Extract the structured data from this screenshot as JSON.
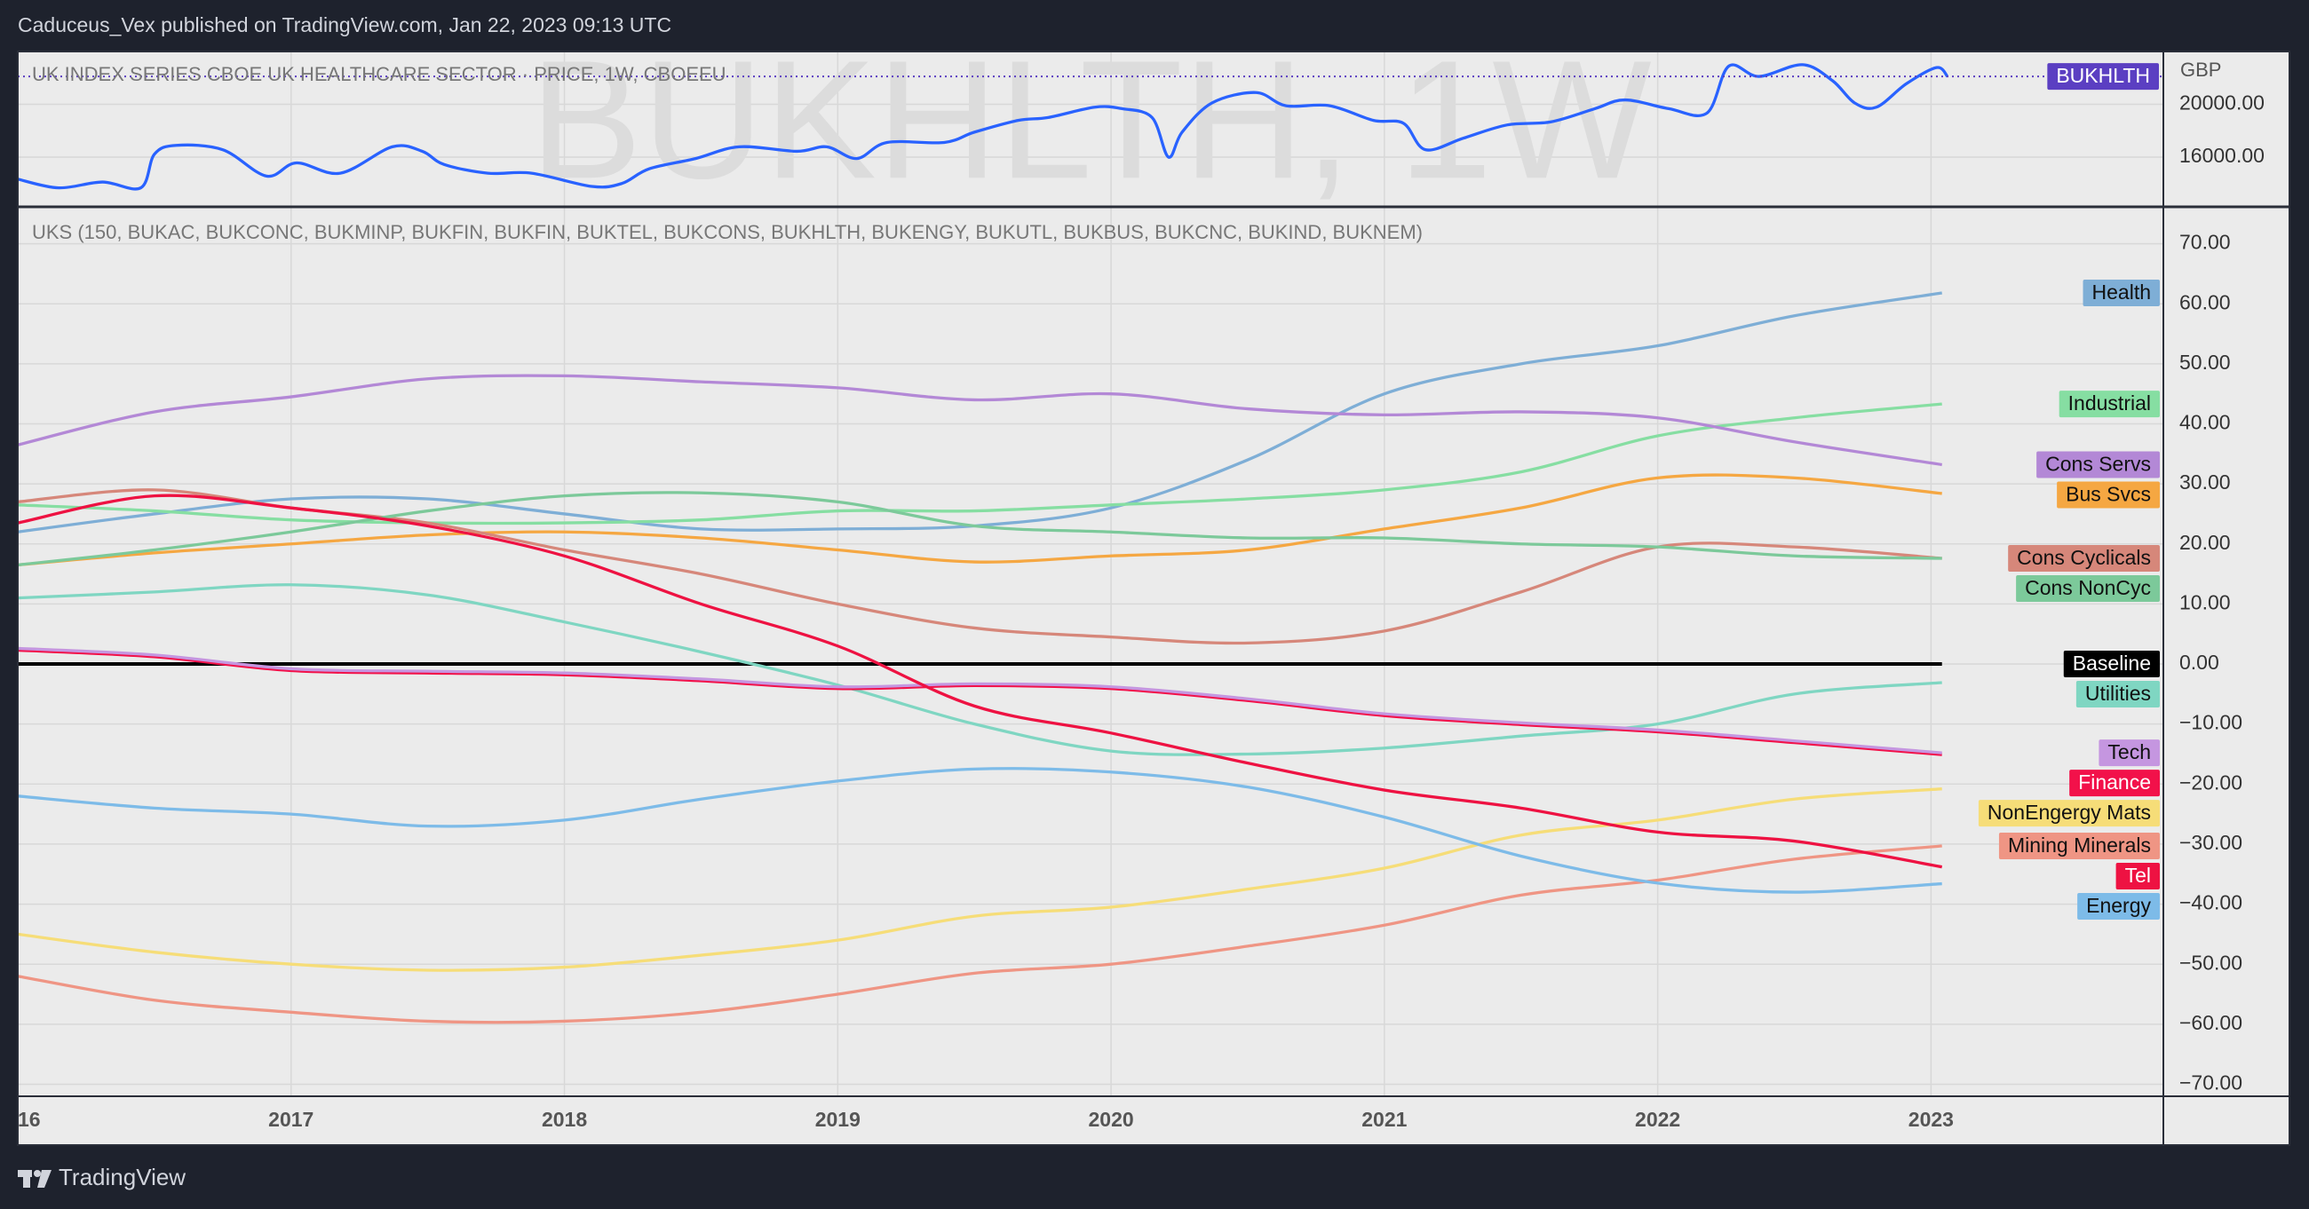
{
  "header": {
    "text": "Caduceus_Vex published on TradingView.com, Jan 22, 2023 09:13 UTC"
  },
  "footer": {
    "text": "TradingView"
  },
  "chart_data": [
    {
      "type": "line",
      "title": "UK INDEX SERIES CBOE UK HEALTHCARE SECTOR · PRICE, 1W, CBOEEU",
      "watermark": "BUKHLTH, 1W",
      "currency": "GBP",
      "price_line_color": "#5b3fc2",
      "x": [
        2016.0,
        2016.15,
        2016.31,
        2016.45,
        2016.5,
        2016.58,
        2016.75,
        2016.91,
        2017.02,
        2017.18,
        2017.37,
        2017.48,
        2017.56,
        2017.72,
        2017.88,
        2018.1,
        2018.21,
        2018.31,
        2018.48,
        2018.64,
        2018.85,
        2018.96,
        2019.07,
        2019.18,
        2019.39,
        2019.5,
        2019.66,
        2019.77,
        2019.94,
        2020.04,
        2020.15,
        2020.21,
        2020.26,
        2020.37,
        2020.53,
        2020.64,
        2020.8,
        2020.96,
        2021.07,
        2021.15,
        2021.29,
        2021.45,
        2021.61,
        2021.77,
        2021.88,
        2022.04,
        2022.18,
        2022.26,
        2022.37,
        2022.53,
        2022.64,
        2022.72,
        2022.8,
        2022.91,
        2023.02,
        2023.06
      ],
      "series": [
        {
          "name": "BUKHLTH",
          "color": "#2962ff",
          "values": [
            14330,
            13670,
            14110,
            13670,
            16220,
            16890,
            16560,
            14560,
            15560,
            14780,
            16780,
            16440,
            15440,
            14780,
            14780,
            13780,
            14000,
            15110,
            15890,
            16780,
            16440,
            16780,
            15890,
            17110,
            17110,
            17890,
            18780,
            19000,
            19780,
            19670,
            19000,
            16000,
            17890,
            20110,
            20890,
            19890,
            19890,
            18780,
            18560,
            16560,
            17440,
            18440,
            18670,
            19670,
            20330,
            19670,
            19330,
            22890,
            22110,
            23000,
            21780,
            20110,
            19780,
            21560,
            22780,
            22110
          ]
        }
      ],
      "xlim": [
        2016,
        2023.85
      ],
      "ylim": [
        12300,
        24000
      ],
      "yticks": [
        {
          "value": 16000,
          "label": "16000.00"
        },
        {
          "value": 20000,
          "label": "20000.00"
        }
      ],
      "grid": true
    },
    {
      "type": "line",
      "title": "UKS (150, BUKAC, BUKCONC, BUKMINP, BUKFIN, BUKFIN, BUKTEL, BUKCONS, BUKHLTH, BUKENGY, BUKUTL, BUKBUS, BUKCNC, BUKIND, BUKNEM)",
      "x": [
        2016,
        2016.5,
        2017,
        2017.5,
        2018,
        2018.5,
        2019,
        2019.5,
        2020,
        2020.5,
        2021,
        2021.5,
        2022,
        2022.5,
        2023.04
      ],
      "series": [
        {
          "name": "Health",
          "color": "#7eaed6",
          "values": [
            22,
            25,
            27.5,
            27.5,
            25,
            22.5,
            22.5,
            23,
            26,
            34,
            45,
            50,
            53,
            58,
            61.8
          ]
        },
        {
          "name": "Industrial",
          "color": "#86dea2",
          "values": [
            26.5,
            25.5,
            24,
            23.5,
            23.5,
            24,
            25.5,
            25.5,
            26.5,
            27.5,
            29,
            32,
            38,
            41,
            43.3
          ]
        },
        {
          "name": "Cons Servs",
          "color": "#b388d6",
          "values": [
            36.5,
            42,
            44.5,
            47.5,
            48,
            47,
            46,
            44,
            45,
            42.5,
            41.5,
            42,
            41,
            37,
            33.2
          ]
        },
        {
          "name": "Bus Svcs",
          "color": "#f5a742",
          "values": [
            16.5,
            18.5,
            20,
            21.5,
            22,
            21,
            19,
            17,
            18,
            19,
            22.5,
            26,
            31,
            31,
            28.4
          ]
        },
        {
          "name": "Cons Cyclicals",
          "color": "#d6877a",
          "values": [
            27,
            29,
            26,
            23.5,
            19,
            15,
            10,
            6,
            4.5,
            3.5,
            5.5,
            12,
            19.5,
            19.5,
            17.6
          ]
        },
        {
          "name": "Cons NonCyc",
          "color": "#7cc99a",
          "values": [
            16.5,
            19,
            22,
            25.5,
            28,
            28.5,
            27,
            23,
            22,
            21,
            21,
            20,
            19.5,
            18,
            17.6
          ]
        },
        {
          "name": "Baseline",
          "color": "#000000",
          "values": [
            0,
            0,
            0,
            0,
            0,
            0,
            0,
            0,
            0,
            0,
            0,
            0,
            0,
            0,
            0
          ]
        },
        {
          "name": "Utilities",
          "color": "#7fd6c2",
          "values": [
            11,
            12,
            13.2,
            11.5,
            7,
            2,
            -3.5,
            -10,
            -14.5,
            -15,
            -14,
            -12,
            -10,
            -5,
            -3.1
          ]
        },
        {
          "name": "Finance",
          "color": "#f2114a",
          "values": [
            2.3,
            1.2,
            -1.1,
            -1.5,
            -1.8,
            -2.8,
            -4.1,
            -3.6,
            -4.1,
            -6.1,
            -8.6,
            -10.1,
            -11.3,
            -13.1,
            -15.1
          ]
        },
        {
          "name": "Tech",
          "color": "#c596e0",
          "values": [
            2.6,
            1.5,
            -0.8,
            -1.2,
            -1.5,
            -2.5,
            -3.8,
            -3.3,
            -3.8,
            -5.8,
            -8.3,
            -9.8,
            -11,
            -12.8,
            -14.8
          ]
        },
        {
          "name": "NonEngergy Mats",
          "color": "#f6dd78",
          "values": [
            -45,
            -48,
            -50,
            -51,
            -50.5,
            -48.5,
            -46,
            -42,
            -40.5,
            -37.5,
            -34,
            -28.5,
            -26,
            -22.5,
            -20.8
          ]
        },
        {
          "name": "Mining Minerals",
          "color": "#ef9584",
          "values": [
            -52,
            -56,
            -58,
            -59.5,
            -59.5,
            -58,
            -55,
            -51.5,
            -50,
            -47,
            -43.5,
            -38.5,
            -36,
            -32.5,
            -30.3
          ]
        },
        {
          "name": "Tel",
          "color": "#ee1242",
          "values": [
            23.5,
            28,
            26,
            23,
            18,
            10,
            3,
            -7,
            -11.5,
            -16.5,
            -21,
            -24,
            -28,
            -29.5,
            -33.8
          ]
        },
        {
          "name": "Energy",
          "color": "#7dbbe8",
          "values": [
            -22,
            -24,
            -25,
            -27,
            -26,
            -22.5,
            -19.5,
            -17.5,
            -18,
            -20.5,
            -25.5,
            -32,
            -36.5,
            -38,
            -36.6
          ]
        }
      ],
      "xlim": [
        2016,
        2023.85
      ],
      "xticks": [
        {
          "value": 2016,
          "label": "16"
        },
        2017,
        2018,
        2019,
        2020,
        2021,
        2022,
        2023
      ],
      "ylim": [
        -72,
        76
      ],
      "yticks": [
        {
          "value": 70,
          "label": "70.00"
        },
        {
          "value": 60,
          "label": "60.00"
        },
        {
          "value": 50,
          "label": "50.00"
        },
        {
          "value": 40,
          "label": "40.00"
        },
        {
          "value": 30,
          "label": "30.00"
        },
        {
          "value": 20,
          "label": "20.00"
        },
        {
          "value": 10,
          "label": "10.00"
        },
        {
          "value": 0,
          "label": "0.00"
        },
        {
          "value": -10,
          "label": "−10.00"
        },
        {
          "value": -20,
          "label": "−20.00"
        },
        {
          "value": -30,
          "label": "−30.00"
        },
        {
          "value": -40,
          "label": "−40.00"
        },
        {
          "value": -50,
          "label": "−50.00"
        },
        {
          "value": -60,
          "label": "−60.00"
        },
        {
          "value": -70,
          "label": "−70.00"
        }
      ],
      "grid": true
    }
  ]
}
